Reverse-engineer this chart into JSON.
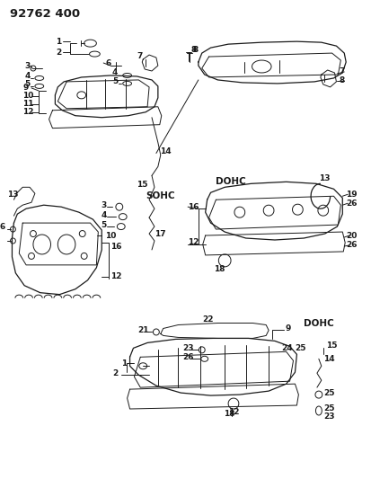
{
  "bg_color": "#ffffff",
  "fig_width": 4.13,
  "fig_height": 5.33,
  "dpi": 100,
  "header": "92762 400",
  "sohc_label": "SOHC",
  "dohc_label1": "DOHC",
  "dohc_label2": "DOHC"
}
